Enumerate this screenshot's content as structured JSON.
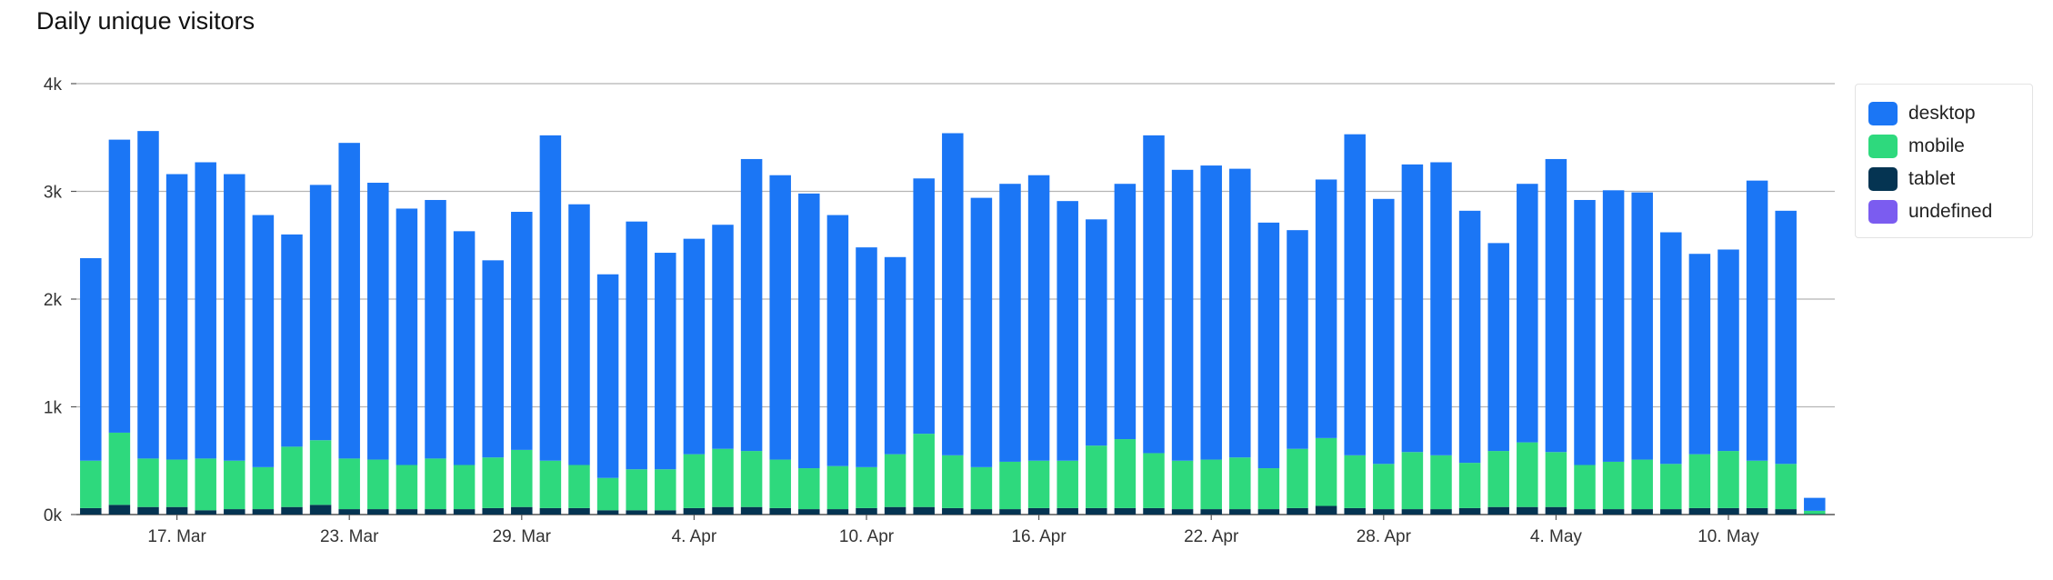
{
  "chart_data": {
    "type": "bar",
    "stacked": true,
    "title": "Daily unique visitors",
    "ylim": [
      0,
      4000
    ],
    "yticks": [
      "0k",
      "1k",
      "2k",
      "3k",
      "4k"
    ],
    "ytick_values": [
      0,
      1000,
      2000,
      3000,
      4000
    ],
    "xtick_labels": [
      "17. Mar",
      "23. Mar",
      "29. Mar",
      "4. Apr",
      "10. Apr",
      "16. Apr",
      "22. Apr",
      "28. Apr",
      "4. May",
      "10. May"
    ],
    "xtick_indices": [
      3,
      9,
      15,
      21,
      27,
      33,
      39,
      45,
      51,
      57
    ],
    "grid": true,
    "legend_position": "right",
    "series": [
      {
        "name": "desktop",
        "color": "#1b76f5",
        "values": [
          1880,
          2720,
          3040,
          2650,
          2750,
          2660,
          2340,
          1970,
          2370,
          2930,
          2570,
          2380,
          2400,
          2170,
          1830,
          2210,
          3020,
          2420,
          1890,
          2300,
          2010,
          2000,
          2080,
          2710,
          2640,
          2550,
          2330,
          2040,
          1830,
          2370,
          2990,
          2500,
          2580,
          2650,
          2410,
          2100,
          2370,
          2950,
          2700,
          2730,
          2680,
          2280,
          2030,
          2400,
          2980,
          2460,
          2670,
          2720,
          2340,
          1930,
          2400,
          2720,
          2460,
          2520,
          2480,
          2150,
          1860,
          1870,
          2600,
          2350,
          120
        ]
      },
      {
        "name": "mobile",
        "color": "#2ed97d",
        "values": [
          440,
          670,
          450,
          440,
          480,
          450,
          390,
          560,
          600,
          470,
          460,
          410,
          470,
          410,
          470,
          530,
          440,
          400,
          300,
          380,
          380,
          500,
          540,
          520,
          450,
          380,
          400,
          380,
          490,
          680,
          490,
          390,
          440,
          440,
          440,
          580,
          640,
          510,
          450,
          460,
          480,
          380,
          550,
          630,
          490,
          420,
          530,
          500,
          420,
          520,
          600,
          510,
          410,
          440,
          460,
          420,
          500,
          530,
          440,
          420,
          30
        ]
      },
      {
        "name": "tablet",
        "color": "#053452",
        "values": [
          60,
          90,
          70,
          70,
          40,
          50,
          50,
          70,
          90,
          50,
          50,
          50,
          50,
          50,
          60,
          70,
          60,
          60,
          40,
          40,
          40,
          60,
          70,
          70,
          60,
          50,
          50,
          60,
          70,
          70,
          60,
          50,
          50,
          60,
          60,
          60,
          60,
          60,
          50,
          50,
          50,
          50,
          60,
          80,
          60,
          50,
          50,
          50,
          60,
          70,
          70,
          70,
          50,
          50,
          50,
          50,
          60,
          60,
          60,
          50,
          5
        ]
      },
      {
        "name": "undefined",
        "color": "#7b5cf0",
        "values": [
          0,
          0,
          0,
          0,
          0,
          0,
          0,
          0,
          0,
          0,
          0,
          0,
          0,
          0,
          0,
          0,
          0,
          0,
          0,
          0,
          0,
          0,
          0,
          0,
          0,
          0,
          0,
          0,
          0,
          0,
          0,
          0,
          0,
          0,
          0,
          0,
          0,
          0,
          0,
          0,
          0,
          0,
          0,
          0,
          0,
          0,
          0,
          0,
          0,
          0,
          0,
          0,
          0,
          0,
          0,
          0,
          0,
          0,
          0,
          0,
          0
        ]
      }
    ]
  }
}
